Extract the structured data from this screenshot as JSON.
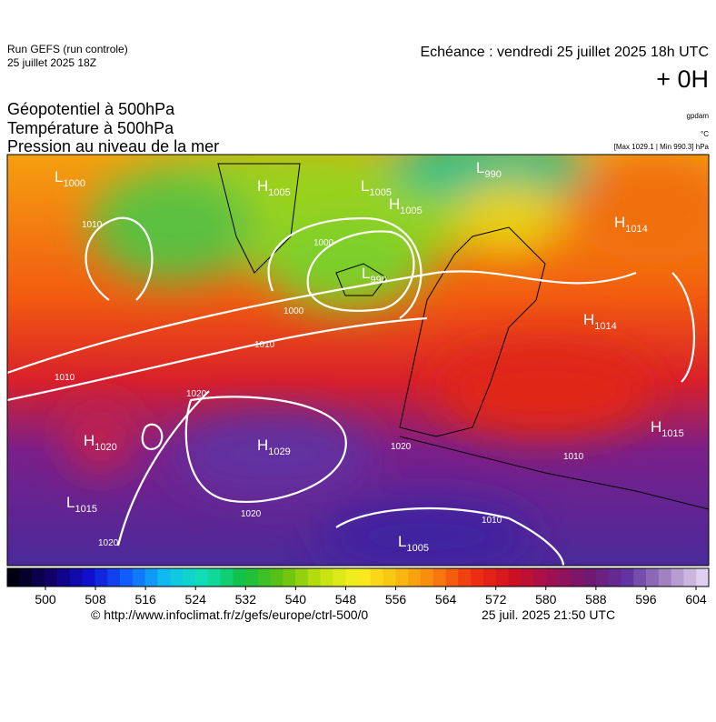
{
  "header": {
    "run": "Run GEFS (run controle)",
    "run_date": "25 juillet 2025 18Z",
    "valid": "Echéance : vendredi 25 juillet 2025 18h UTC",
    "lead": "+ 0H"
  },
  "layers": [
    "Géopotentiel à 500hPa",
    "Température à 500hPa",
    "Pression au niveau de la mer"
  ],
  "units": {
    "geopotential": "gpdam",
    "temperature": "°C",
    "pressure_range": "[Max 1029.1 | Min 990.3] hPa"
  },
  "centers": [
    {
      "type": "L",
      "value": "1000"
    },
    {
      "type": "H",
      "value": "1005"
    },
    {
      "type": "L",
      "value": "1005"
    },
    {
      "type": "H",
      "value": "1005"
    },
    {
      "type": "L",
      "value": "990"
    },
    {
      "type": "H",
      "value": "1014"
    },
    {
      "type": "L",
      "value": "990"
    },
    {
      "type": "H",
      "value": "1014"
    },
    {
      "type": "H",
      "value": "1020"
    },
    {
      "type": "H",
      "value": "1029"
    },
    {
      "type": "H",
      "value": "1015"
    },
    {
      "type": "L",
      "value": "1015"
    },
    {
      "type": "L",
      "value": "1005"
    }
  ],
  "isobar_labels": [
    "1010",
    "1000",
    "1000",
    "1010",
    "1010",
    "1020",
    "1020",
    "1020",
    "1020",
    "1010",
    "1010"
  ],
  "colorbar": {
    "ticks": [
      500,
      508,
      516,
      524,
      532,
      540,
      548,
      556,
      564,
      572,
      580,
      588,
      596,
      604
    ]
  },
  "footer": {
    "url": "© http://www.infoclimat.fr/z/gefs/europe/ctrl-500/0",
    "generated": "25 juil. 2025 21:50 UTC"
  }
}
